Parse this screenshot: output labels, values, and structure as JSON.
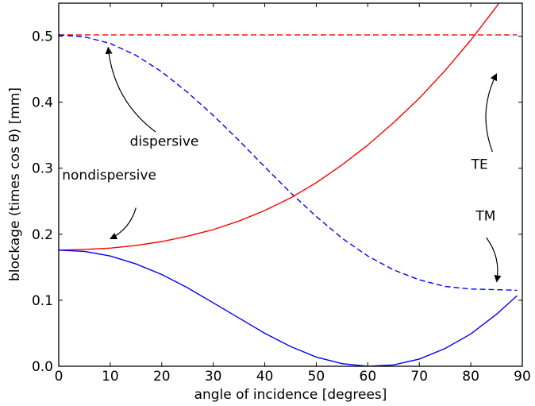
{
  "chart_data": {
    "type": "line",
    "xlabel": "angle of incidence [degrees]",
    "ylabel": "blockage (times cos θ) [mm]",
    "xlim": [
      0,
      90
    ],
    "ylim": [
      0.0,
      0.55
    ],
    "xticks": [
      0,
      10,
      20,
      30,
      40,
      50,
      60,
      70,
      80,
      90
    ],
    "xtick_labels": [
      "0",
      "10",
      "20",
      "30",
      "40",
      "50",
      "60",
      "70",
      "80",
      "90"
    ],
    "yticks": [
      0.0,
      0.1,
      0.2,
      0.3,
      0.4,
      0.5
    ],
    "ytick_labels": [
      "0.0",
      "0.1",
      "0.2",
      "0.3",
      "0.4",
      "0.5"
    ],
    "grid": false,
    "x": [
      0,
      5,
      10,
      15,
      20,
      25,
      30,
      35,
      40,
      45,
      50,
      55,
      60,
      65,
      70,
      75,
      80,
      85,
      89
    ],
    "series": [
      {
        "color": "#ff0000",
        "style": "dashed",
        "values": [
          0.502,
          0.502,
          0.502,
          0.502,
          0.502,
          0.502,
          0.502,
          0.502,
          0.502,
          0.502,
          0.502,
          0.502,
          0.502,
          0.502,
          0.502,
          0.502,
          0.502,
          0.502,
          0.502
        ]
      },
      {
        "color": "#0000ff",
        "style": "dashed",
        "values": [
          0.502,
          0.499,
          0.489,
          0.471,
          0.446,
          0.415,
          0.38,
          0.342,
          0.302,
          0.263,
          0.227,
          0.194,
          0.167,
          0.146,
          0.131,
          0.121,
          0.117,
          0.116,
          0.115
        ]
      },
      {
        "color": "#ff0000",
        "style": "solid",
        "values": [
          0.176,
          0.177,
          0.179,
          0.183,
          0.189,
          0.197,
          0.207,
          0.22,
          0.236,
          0.255,
          0.278,
          0.305,
          0.335,
          0.369,
          0.406,
          0.448,
          0.494,
          0.545,
          0.59
        ]
      },
      {
        "color": "#0000ff",
        "style": "solid",
        "values": [
          0.176,
          0.174,
          0.167,
          0.155,
          0.139,
          0.119,
          0.096,
          0.073,
          0.05,
          0.03,
          0.014,
          0.004,
          0.0,
          0.002,
          0.011,
          0.027,
          0.049,
          0.079,
          0.107
        ]
      }
    ],
    "annotations": [
      {
        "text": "dispersive",
        "label_at": [
          20.5,
          0.334
        ],
        "arrow_from": [
          18.8,
          0.355
        ],
        "arrow_to": [
          9.6,
          0.483
        ]
      },
      {
        "text": "nondispersive",
        "label_at": [
          9.8,
          0.283
        ],
        "arrow_from": [
          15.0,
          0.24
        ],
        "arrow_to": [
          10.0,
          0.193
        ]
      },
      {
        "text": "TE",
        "label_at": [
          81.7,
          0.299
        ],
        "arrow_from": [
          84.2,
          0.325
        ],
        "arrow_to": [
          85.0,
          0.443
        ]
      },
      {
        "text": "TM",
        "label_at": [
          82.9,
          0.221
        ],
        "arrow_from": [
          83.0,
          0.195
        ],
        "arrow_to": [
          85.0,
          0.128
        ]
      }
    ]
  }
}
